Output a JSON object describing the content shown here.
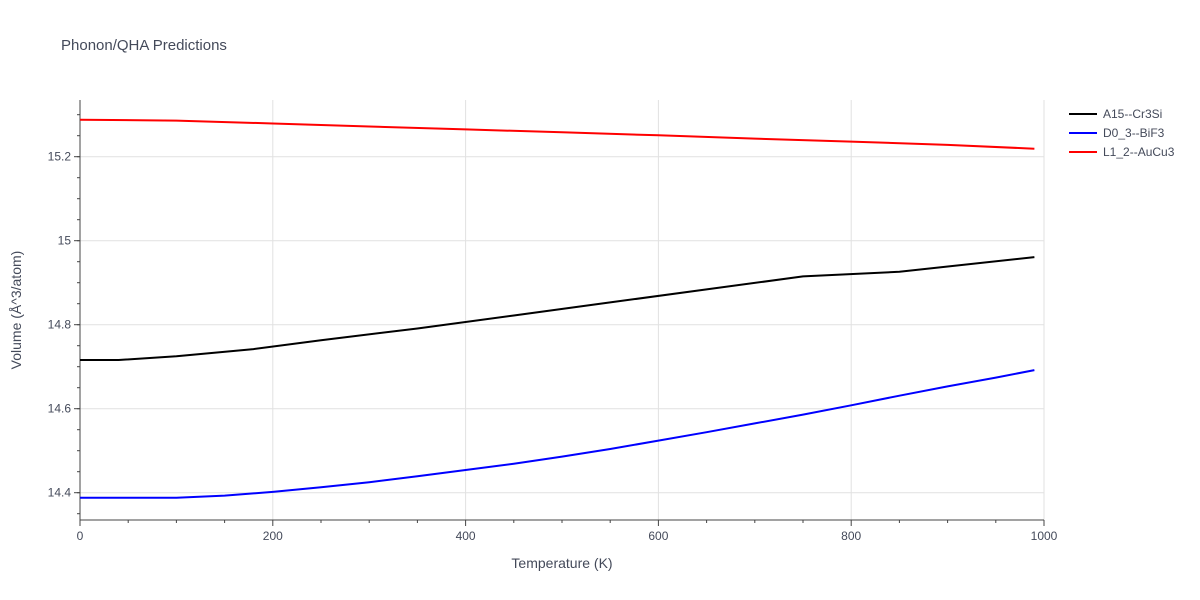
{
  "chart_data": {
    "type": "line",
    "title": "Phonon/QHA Predictions",
    "xlabel": "Temperature (K)",
    "ylabel": "Volume (Å^3/atom)",
    "xlim": [
      0,
      1000
    ],
    "ylim": [
      14.335,
      15.335
    ],
    "xticks": [
      0,
      200,
      400,
      600,
      800,
      1000
    ],
    "yticks": [
      14.4,
      14.6,
      14.8,
      15,
      15.2
    ],
    "xtick_labels": [
      "0",
      "200",
      "400",
      "600",
      "800",
      "1000"
    ],
    "ytick_labels": [
      "14.4",
      "14.6",
      "14.8",
      "15",
      "15.2"
    ],
    "grid": true,
    "legend_position": "top-right",
    "series": [
      {
        "name": "A15--Cr3Si",
        "color": "#000000",
        "x": [
          0,
          40,
          100,
          180,
          250,
          350,
          450,
          550,
          650,
          750,
          850,
          990
        ],
        "y": [
          14.716,
          14.716,
          14.725,
          14.742,
          14.763,
          14.791,
          14.822,
          14.853,
          14.884,
          14.915,
          14.926,
          14.961
        ]
      },
      {
        "name": "D0_3--BiF3",
        "color": "#0000ff",
        "x": [
          0,
          50,
          100,
          150,
          200,
          250,
          300,
          350,
          400,
          450,
          500,
          550,
          600,
          650,
          700,
          750,
          800,
          850,
          900,
          950,
          990
        ],
        "y": [
          14.388,
          14.388,
          14.388,
          14.393,
          14.402,
          14.413,
          14.425,
          14.439,
          14.454,
          14.469,
          14.486,
          14.504,
          14.524,
          14.544,
          14.565,
          14.586,
          14.608,
          14.631,
          14.653,
          14.674,
          14.692
        ]
      },
      {
        "name": "L1_2--AuCu3",
        "color": "#ff0000",
        "x": [
          0,
          100,
          200,
          300,
          400,
          500,
          600,
          700,
          800,
          900,
          990
        ],
        "y": [
          15.288,
          15.286,
          15.279,
          15.272,
          15.265,
          15.258,
          15.251,
          15.243,
          15.236,
          15.228,
          15.219
        ]
      }
    ]
  }
}
